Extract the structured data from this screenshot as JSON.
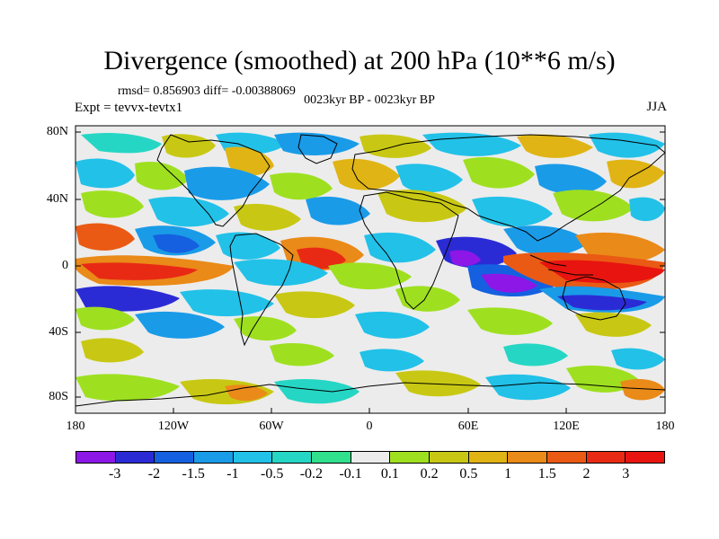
{
  "figure": {
    "title": "Divergence (smoothed) at 200 hPa (10**6 m/s)",
    "rmsd_line": "rmsd= 0.856903 diff= -0.00388069",
    "experiment": "Expt = tevvx-tevtx1",
    "subtitle": "0023kyr BP - 0023kyr BP",
    "season": "JJA"
  },
  "axes": {
    "y_ticks": [
      "80N",
      "40N",
      "0",
      "40S",
      "80S"
    ],
    "x_ticks": [
      "180",
      "120W",
      "60W",
      "0",
      "60E",
      "120E",
      "180"
    ]
  },
  "colorbar": {
    "labels": [
      "-3",
      "-2",
      "-1.5",
      "-1",
      "-0.5",
      "-0.2",
      "-0.1",
      "0.1",
      "0.2",
      "0.5",
      "1",
      "1.5",
      "2",
      "3"
    ],
    "colors": [
      "#8c17e6",
      "#2b2bd6",
      "#1560e0",
      "#1a9be8",
      "#22c1e8",
      "#26d6c4",
      "#30e08c",
      "#ececec",
      "#9ee020",
      "#c8c814",
      "#e0b414",
      "#ea8a18",
      "#ea5a14",
      "#e82a14",
      "#e81410"
    ]
  }
}
